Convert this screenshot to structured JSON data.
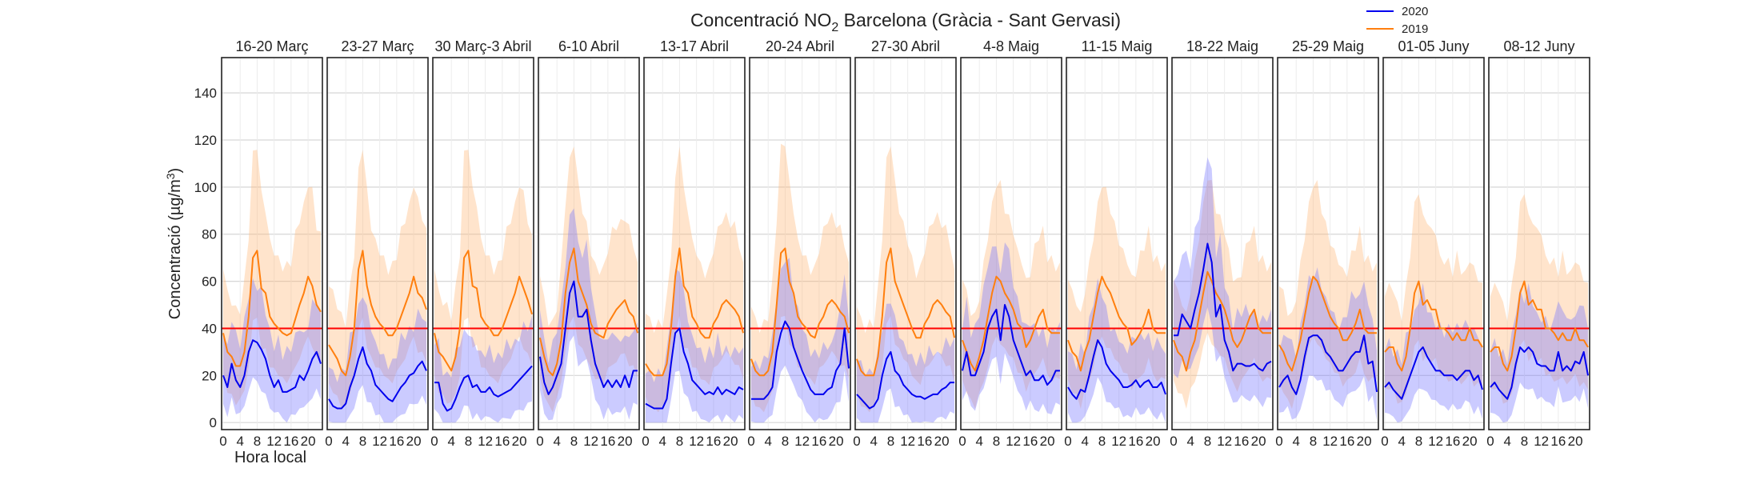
{
  "chart_data": {
    "type": "line",
    "title": "Concentració NO₂ Barcelona (Gràcia - Sant Gervasi)",
    "title_parts": {
      "pre": "Concentració NO",
      "sub": "2",
      "post": " Barcelona (Gràcia - Sant Gervasi)"
    },
    "ylabel": "Concentració (µg/m³)",
    "ylabel_parts": {
      "pre": "Concentració (µg/m",
      "sup": "3",
      "post": ")"
    },
    "xlabel": "Hora local",
    "ylim": [
      -3,
      155
    ],
    "xlim": [
      0,
      23
    ],
    "yticks": [
      0,
      20,
      40,
      60,
      80,
      100,
      120,
      140
    ],
    "xticks": [
      0,
      4,
      8,
      12,
      16,
      20
    ],
    "grid": true,
    "legend_position": "top-right",
    "threshold": {
      "value": 40,
      "color": "#ff0000"
    },
    "series_info": [
      {
        "name": "2020",
        "color": "#0000ee",
        "band_color": "#7777ff"
      },
      {
        "name": "2019",
        "color": "#ff7f0e",
        "band_color": "#ffb87a"
      }
    ],
    "panels": [
      {
        "title": "16-20 Març",
        "s2020": [
          20,
          15,
          25,
          18,
          15,
          20,
          30,
          35,
          34,
          31,
          27,
          20,
          15,
          18,
          13,
          13,
          14,
          15,
          20,
          18,
          22,
          27,
          30,
          25
        ],
        "s2019": [
          38,
          30,
          28,
          24,
          24,
          30,
          45,
          70,
          73,
          57,
          55,
          45,
          42,
          40,
          38,
          37,
          38,
          44,
          50,
          55,
          62,
          58,
          50,
          47
        ]
      },
      {
        "title": "23-27 Març",
        "s2020": [
          10,
          7,
          6,
          6,
          8,
          15,
          20,
          27,
          32,
          25,
          22,
          16,
          14,
          12,
          10,
          9,
          12,
          15,
          17,
          20,
          21,
          24,
          26,
          22
        ],
        "s2019": [
          33,
          30,
          27,
          22,
          20,
          28,
          40,
          65,
          73,
          58,
          50,
          45,
          42,
          40,
          37,
          37,
          40,
          45,
          50,
          55,
          62,
          55,
          53,
          48
        ]
      },
      {
        "title": "30 Març-3 Abril",
        "s2020": [
          17,
          17,
          8,
          5,
          6,
          10,
          15,
          19,
          20,
          15,
          16,
          13,
          13,
          15,
          12,
          11,
          12,
          13,
          14,
          16,
          18,
          20,
          22,
          24
        ],
        "s2019": [
          38,
          30,
          28,
          25,
          22,
          28,
          40,
          70,
          73,
          58,
          57,
          45,
          42,
          40,
          37,
          37,
          40,
          45,
          50,
          55,
          62,
          57,
          52,
          46
        ]
      },
      {
        "title": "6-10 Abril",
        "s2020": [
          28,
          17,
          12,
          15,
          20,
          25,
          40,
          55,
          60,
          45,
          45,
          48,
          35,
          25,
          20,
          15,
          18,
          15,
          18,
          15,
          20,
          15,
          22,
          22
        ],
        "s2019": [
          36,
          28,
          22,
          20,
          25,
          35,
          55,
          68,
          74,
          60,
          55,
          50,
          42,
          38,
          37,
          36,
          42,
          45,
          48,
          50,
          52,
          47,
          45,
          38
        ]
      },
      {
        "title": "13-17 Abril",
        "s2020": [
          8,
          7,
          6,
          6,
          6,
          10,
          25,
          38,
          40,
          30,
          25,
          18,
          16,
          14,
          12,
          13,
          12,
          15,
          12,
          14,
          13,
          12,
          15,
          14
        ],
        "s2019": [
          25,
          22,
          20,
          20,
          20,
          25,
          40,
          62,
          74,
          58,
          55,
          45,
          42,
          38,
          36,
          36,
          42,
          45,
          50,
          52,
          50,
          48,
          45,
          38
        ]
      },
      {
        "title": "20-24 Abril",
        "s2020": [
          10,
          10,
          10,
          10,
          12,
          15,
          30,
          38,
          43,
          40,
          32,
          27,
          22,
          18,
          14,
          12,
          12,
          12,
          14,
          15,
          22,
          25,
          40,
          23
        ],
        "s2019": [
          27,
          22,
          20,
          20,
          22,
          30,
          50,
          72,
          74,
          60,
          55,
          45,
          42,
          40,
          37,
          36,
          42,
          45,
          50,
          52,
          50,
          47,
          45,
          38
        ]
      },
      {
        "title": "27-30 Abril",
        "s2020": [
          12,
          10,
          8,
          6,
          7,
          10,
          20,
          27,
          30,
          22,
          20,
          16,
          14,
          12,
          11,
          11,
          10,
          11,
          12,
          12,
          14,
          15,
          17,
          17
        ],
        "s2019": [
          27,
          22,
          20,
          20,
          20,
          28,
          45,
          68,
          74,
          60,
          55,
          50,
          45,
          40,
          36,
          36,
          42,
          45,
          50,
          52,
          50,
          47,
          45,
          36
        ]
      },
      {
        "title": "4-8 Maig",
        "s2020": [
          22,
          30,
          20,
          20,
          25,
          30,
          40,
          45,
          48,
          35,
          50,
          45,
          35,
          30,
          25,
          20,
          22,
          18,
          18,
          20,
          16,
          18,
          22,
          22
        ],
        "s2019": [
          35,
          30,
          25,
          22,
          28,
          35,
          45,
          55,
          62,
          60,
          55,
          52,
          48,
          42,
          40,
          32,
          35,
          40,
          45,
          48,
          40,
          38,
          38,
          38
        ]
      },
      {
        "title": "11-15 Maig",
        "s2020": [
          15,
          12,
          10,
          14,
          13,
          20,
          28,
          35,
          32,
          25,
          22,
          20,
          18,
          15,
          15,
          16,
          18,
          15,
          17,
          18,
          15,
          15,
          17,
          12
        ],
        "s2019": [
          35,
          30,
          28,
          22,
          30,
          35,
          45,
          55,
          62,
          58,
          55,
          50,
          45,
          42,
          40,
          33,
          35,
          38,
          42,
          48,
          40,
          38,
          38,
          38
        ]
      },
      {
        "title": "18-22 Maig",
        "s2020": [
          37,
          37,
          46,
          43,
          40,
          48,
          55,
          65,
          76,
          68,
          45,
          50,
          35,
          30,
          22,
          25,
          25,
          24,
          24,
          25,
          23,
          22,
          25,
          26
        ],
        "s2019": [
          35,
          30,
          28,
          22,
          30,
          35,
          45,
          55,
          64,
          60,
          55,
          52,
          48,
          42,
          35,
          32,
          35,
          40,
          45,
          48,
          40,
          38,
          38,
          38
        ]
      },
      {
        "title": "25-29 Maig",
        "s2020": [
          15,
          18,
          20,
          15,
          12,
          18,
          28,
          36,
          37,
          37,
          35,
          30,
          28,
          25,
          22,
          22,
          25,
          28,
          30,
          30,
          37,
          25,
          26,
          13
        ],
        "s2019": [
          33,
          30,
          25,
          22,
          28,
          35,
          45,
          55,
          62,
          60,
          55,
          50,
          45,
          42,
          40,
          35,
          35,
          38,
          42,
          48,
          40,
          38,
          38,
          38
        ]
      },
      {
        "title": "01-05 Juny",
        "s2020": [
          15,
          17,
          14,
          12,
          10,
          15,
          20,
          25,
          30,
          32,
          28,
          25,
          22,
          22,
          20,
          20,
          20,
          18,
          20,
          22,
          22,
          18,
          20,
          14
        ],
        "s2019": [
          30,
          32,
          32,
          25,
          22,
          28,
          40,
          55,
          60,
          50,
          52,
          48,
          48,
          40,
          40,
          38,
          35,
          38,
          35,
          35,
          40,
          35,
          35,
          32
        ]
      },
      {
        "title": "08-12 Juny",
        "s2020": [
          15,
          17,
          14,
          12,
          10,
          15,
          25,
          32,
          30,
          32,
          30,
          25,
          24,
          24,
          22,
          22,
          30,
          22,
          24,
          22,
          26,
          25,
          30,
          20
        ],
        "s2019": [
          30,
          32,
          32,
          25,
          22,
          28,
          40,
          55,
          60,
          50,
          52,
          48,
          48,
          40,
          40,
          38,
          35,
          38,
          35,
          35,
          40,
          35,
          35,
          32
        ]
      }
    ]
  }
}
